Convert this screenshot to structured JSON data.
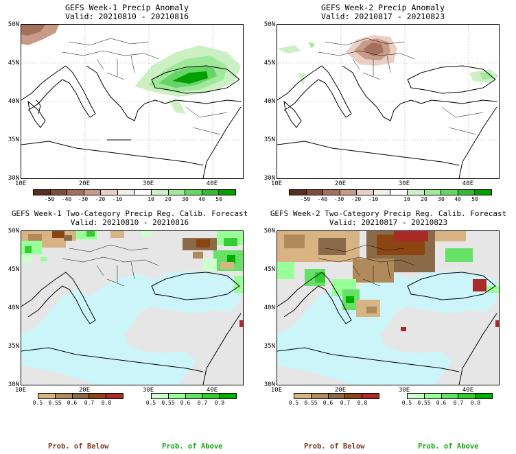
{
  "panels": {
    "tl": {
      "line1": "GEFS Week-1 Precip Anomaly",
      "line2": "Valid: 20210810 - 20210816"
    },
    "tr": {
      "line1": "GEFS Week-2 Precip Anomaly",
      "line2": "Valid: 20210817 - 20210823"
    },
    "bl": {
      "line1": "GEFS Week-1 Two-Category Precip Reg. Calib. Forecast",
      "line2": "Valid: 20210810 - 20210816"
    },
    "br": {
      "line1": "GEFS Week-2 Two-Category Precip Reg. Calib. Forecast",
      "line2": "Valid: 20210817 - 20210823"
    }
  },
  "axes": {
    "lat": [
      "50N",
      "45N",
      "40N",
      "35N",
      "30N"
    ],
    "lon": [
      "10E",
      "20E",
      "30E",
      "40E"
    ]
  },
  "anomaly_colorbar": {
    "labels": [
      "-50",
      "-40",
      "-30",
      "-20",
      "-10",
      "10",
      "20",
      "30",
      "40",
      "50"
    ],
    "colors": [
      "#5a2e1e",
      "#7f4c38",
      "#a3705c",
      "#c89a88",
      "#ead0c4",
      "#f2ede8",
      "#ffffff",
      "#ccf0c4",
      "#a0e89a",
      "#66d466",
      "#33bb33",
      "#00a000"
    ]
  },
  "prob_colorbar": {
    "below_labels": [
      "0.5",
      "0.55",
      "0.6",
      "0.7",
      "0.8"
    ],
    "above_labels": [
      "0.5",
      "0.55",
      "0.6",
      "0.7",
      "0.8"
    ],
    "below_colors": [
      "#d8b485",
      "#b08a5a",
      "#8a6a48",
      "#8b4513",
      "#aa2a2a"
    ],
    "above_colors": [
      "#ccffcc",
      "#99ff99",
      "#66e066",
      "#33cc33",
      "#00b000"
    ]
  },
  "labels": {
    "prob_below": "Prob. of Below",
    "prob_above": "Prob. of Above"
  },
  "colors": {
    "sea": "#ccf5fa",
    "land_gray": "#e6e6e6",
    "below_text": "#7a3b1f",
    "above_text": "#11aa11"
  }
}
